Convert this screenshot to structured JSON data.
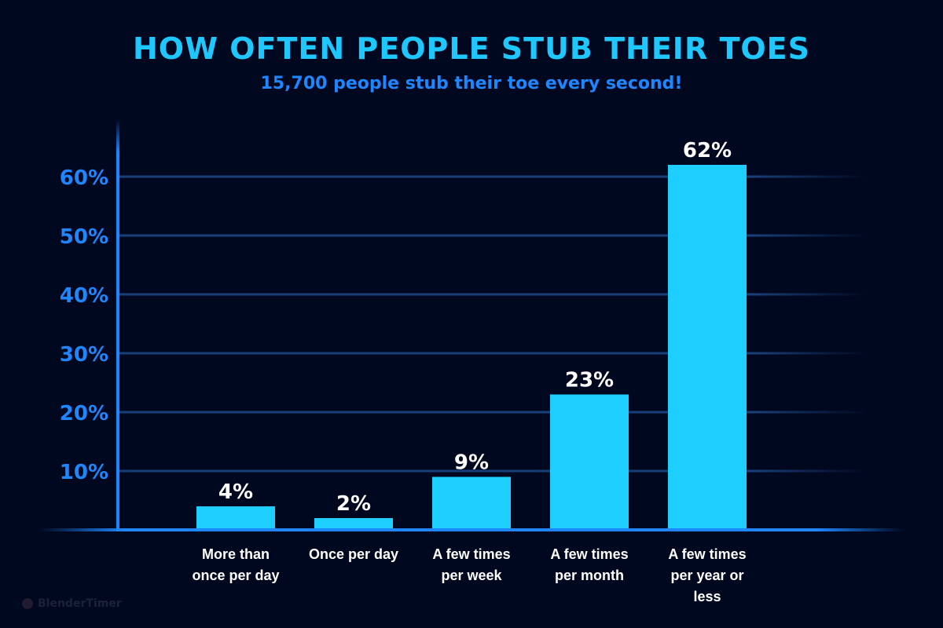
{
  "chart_data": {
    "type": "bar",
    "title": "HOW OFTEN PEOPLE STUB THEIR TOES",
    "subtitle": "15,700 people stub their toe every second!",
    "categories": [
      [
        "More than",
        "once per day"
      ],
      [
        "Once per day"
      ],
      [
        "A few times",
        "per week"
      ],
      [
        "A few times",
        "per month"
      ],
      [
        "A few times",
        "per year or",
        "less"
      ]
    ],
    "values": [
      4,
      2,
      9,
      23,
      62
    ],
    "data_labels": [
      "4%",
      "2%",
      "9%",
      "23%",
      "62%"
    ],
    "yticks": [
      10,
      20,
      30,
      40,
      50,
      60
    ],
    "ytick_labels": [
      "10%",
      "20%",
      "30%",
      "40%",
      "50%",
      "60%"
    ],
    "ylim": [
      0,
      68
    ],
    "grid": true,
    "xlabel": "",
    "ylabel": "",
    "colors": {
      "bar": "#1ccfff",
      "title": "#1ec8ff",
      "subtitle": "#1e86ff",
      "axis": "#1e86ff",
      "grid": "#1a3f78",
      "background": "#00081f"
    }
  },
  "watermark": "BlenderTimer"
}
